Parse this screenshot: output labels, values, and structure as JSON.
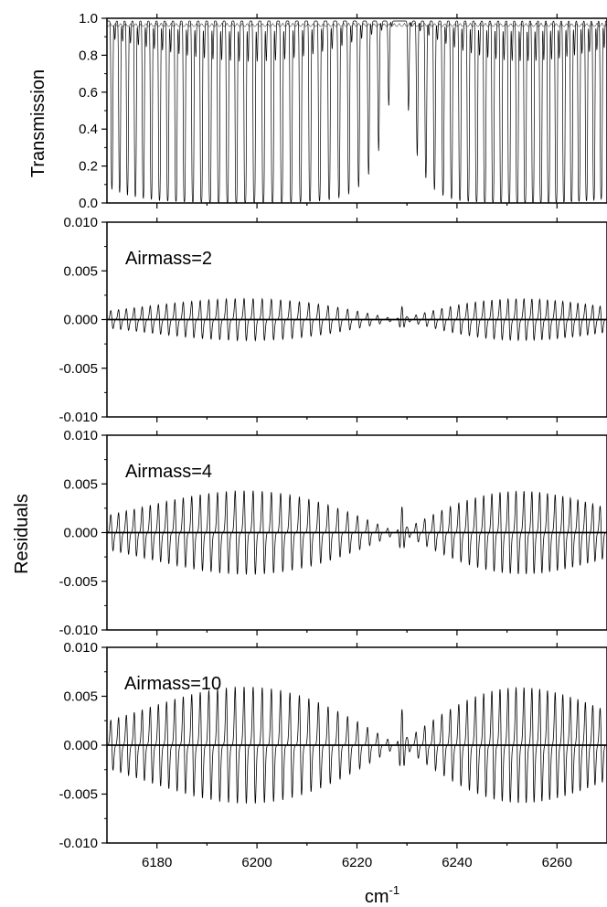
{
  "chart_data": [
    {
      "type": "line",
      "panel": "transmission",
      "ylabel": "Transmission",
      "xlim": [
        6170,
        6270
      ],
      "ylim": [
        0.0,
        1.0
      ],
      "yticks": [
        "0.0",
        "0.2",
        "0.4",
        "0.6",
        "0.8",
        "1.0"
      ],
      "xticks": [
        6180,
        6200,
        6220,
        6240,
        6260
      ],
      "grid": false,
      "description_values": {
        "baseline": 0.98,
        "band_center": 6225,
        "min_transmission": 0.0,
        "p_branch_range": [
          6172,
          6227
        ],
        "r_branch_range": [
          6229,
          6268
        ]
      }
    },
    {
      "type": "line",
      "panel": "residuals",
      "label": "Airmass=2",
      "xlim": [
        6170,
        6270
      ],
      "ylim": [
        -0.01,
        0.01
      ],
      "yticks": [
        "-0.010",
        "-0.005",
        "0.000",
        "0.005",
        "0.010"
      ],
      "xticks": [
        6180,
        6200,
        6220,
        6240,
        6260
      ],
      "amplitude": 0.0022,
      "grid": false
    },
    {
      "type": "line",
      "panel": "residuals",
      "label": "Airmass=4",
      "xlim": [
        6170,
        6270
      ],
      "ylim": [
        -0.01,
        0.01
      ],
      "yticks": [
        "-0.010",
        "-0.005",
        "0.000",
        "0.005",
        "0.010"
      ],
      "xticks": [
        6180,
        6200,
        6220,
        6240,
        6260
      ],
      "amplitude": 0.0044,
      "grid": false
    },
    {
      "type": "line",
      "panel": "residuals",
      "label": "Airmass=10",
      "xlim": [
        6170,
        6270
      ],
      "ylim": [
        -0.01,
        0.01
      ],
      "yticks": [
        "-0.010",
        "-0.005",
        "0.000",
        "0.005",
        "0.010"
      ],
      "xticks": [
        6180,
        6200,
        6220,
        6240,
        6260
      ],
      "amplitude": 0.0061,
      "grid": false
    }
  ],
  "shared": {
    "residuals_label": "Residuals",
    "x_title": "cm",
    "x_title_superscript": "-1"
  }
}
